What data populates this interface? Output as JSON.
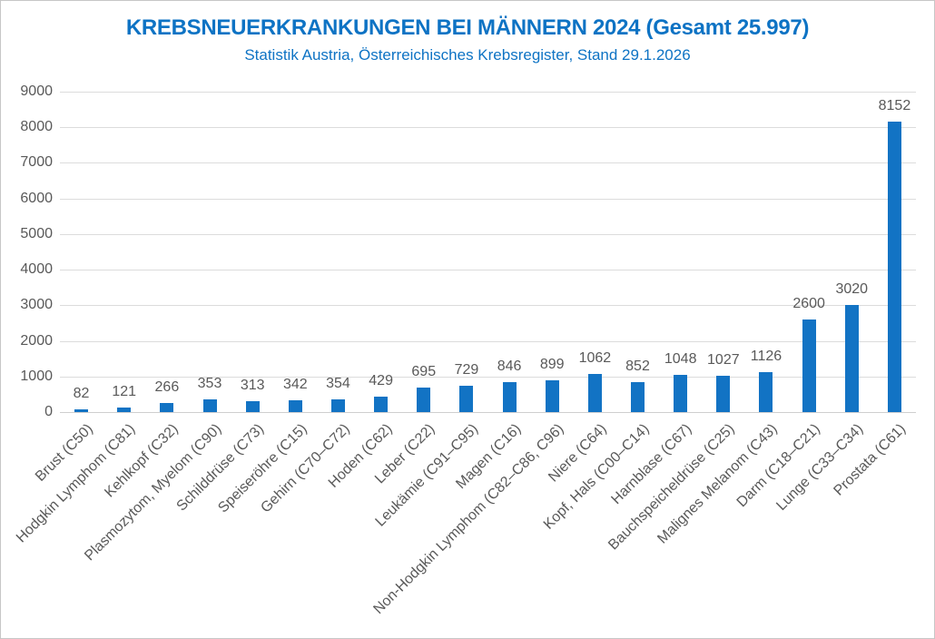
{
  "header": {
    "title": "KREBSNEUERKRANKUNGEN BEI MÄNNERN 2024 (Gesamt 25.997)",
    "subtitle": "Statistik Austria, Österreichisches Krebsregister, Stand 29.1.2026"
  },
  "colors": {
    "bar": "#1273c4",
    "title_text": "#0e73c4",
    "axis_text": "#595959",
    "gridline": "#dcdcdc",
    "border": "#c6c6c6"
  },
  "chart_data": {
    "type": "bar",
    "title": "KREBSNEUERKRANKUNGEN BEI MÄNNERN 2024 (Gesamt 25.997)",
    "subtitle": "Statistik Austria, Österreichisches Krebsregister, Stand 29.1.2026",
    "categories": [
      "Brust (C50)",
      "Hodgkin Lymphom (C81)",
      "Kehlkopf (C32)",
      "Plasmozytom, Myelom (C90)",
      "Schilddrüse (C73)",
      "Speiseröhre (C15)",
      "Gehirn (C70–C72)",
      "Hoden (C62)",
      "Leber (C22)",
      "Leukämie (C91–C95)",
      "Magen (C16)",
      "Non-Hodgkin Lymphom (C82–C86, C96)",
      "Niere (C64)",
      "Kopf, Hals (C00–C14)",
      "Harnblase (C67)",
      "Bauchspeicheldrüse (C25)",
      "Malignes Melanom (C43)",
      "Darm (C18–C21)",
      "Lunge (C33–C34)",
      "Prostata (C61)"
    ],
    "values": [
      82,
      121,
      266,
      353,
      313,
      342,
      354,
      429,
      695,
      729,
      846,
      899,
      1062,
      852,
      1048,
      1027,
      1126,
      2600,
      3020,
      8152
    ],
    "xlabel": "",
    "ylabel": "",
    "ylim": [
      0,
      9000
    ],
    "ytick_step": 1000,
    "ytick_labels": [
      "0",
      "1000",
      "2000",
      "3000",
      "4000",
      "5000",
      "6000",
      "7000",
      "8000",
      "9000"
    ],
    "grid": true,
    "legend": false,
    "data_labels": true,
    "bar_color": "#1273c4"
  }
}
